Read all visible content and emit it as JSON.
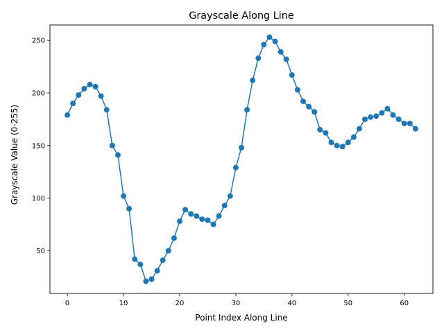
{
  "chart_data": {
    "type": "line",
    "title": "Grayscale Along Line",
    "xlabel": "Point Index Along Line",
    "ylabel": "Grayscale Value (0-255)",
    "xlim": [
      -3.1,
      65.1
    ],
    "ylim": [
      9.4,
      264.6
    ],
    "xticks": [
      0,
      10,
      20,
      30,
      40,
      50,
      60
    ],
    "yticks": [
      50,
      100,
      150,
      200,
      250
    ],
    "xtick_labels": [
      "0",
      "10",
      "20",
      "30",
      "40",
      "50",
      "60"
    ],
    "ytick_labels": [
      "50",
      "100",
      "150",
      "200",
      "250"
    ],
    "grid": false,
    "legend": "none",
    "series": [
      {
        "color": "#1f77b4",
        "marker": "circle",
        "x": [
          0,
          1,
          2,
          3,
          4,
          5,
          6,
          7,
          8,
          9,
          10,
          11,
          12,
          13,
          14,
          15,
          16,
          17,
          18,
          19,
          20,
          21,
          22,
          23,
          24,
          25,
          26,
          27,
          28,
          29,
          30,
          31,
          32,
          33,
          34,
          35,
          36,
          37,
          38,
          39,
          40,
          41,
          42,
          43,
          44,
          45,
          46,
          47,
          48,
          49,
          50,
          51,
          52,
          53,
          54,
          55,
          56,
          57,
          58,
          59,
          60,
          61,
          62
        ],
        "values": [
          179,
          190,
          198,
          204,
          208,
          206,
          197,
          184,
          150,
          141,
          102,
          90,
          42,
          37,
          21,
          23,
          31,
          41,
          50,
          62,
          78,
          89,
          85,
          83,
          80,
          79,
          75,
          83,
          93,
          102,
          129,
          148,
          184,
          212,
          233,
          246,
          253,
          249,
          239,
          232,
          217,
          203,
          192,
          187,
          182,
          165,
          162,
          153,
          150,
          149,
          153,
          158,
          166,
          175,
          177,
          178,
          181,
          185,
          179,
          175,
          171,
          171,
          166
        ]
      }
    ]
  }
}
